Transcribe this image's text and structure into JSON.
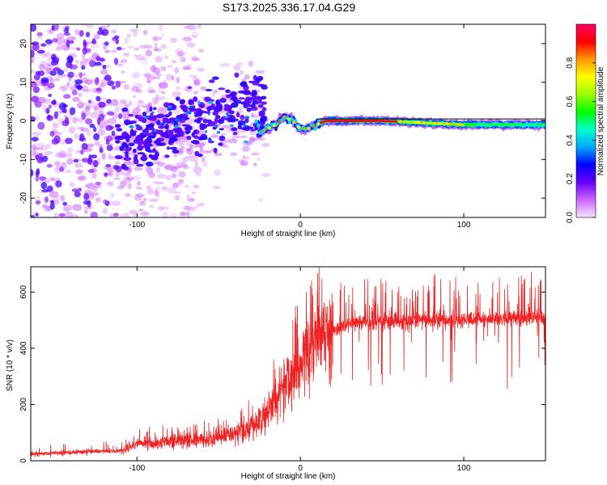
{
  "title": "S173.2025.336.17.04.G29",
  "chart_data": [
    {
      "type": "heatmap",
      "xlabel": "Height of straight line (km)",
      "ylabel": "Frequency (Hz)",
      "xlim": [
        -165,
        150
      ],
      "ylim": [
        -25,
        25
      ],
      "xticks": [
        -100,
        0,
        100
      ],
      "xtick_labels": [
        "-100",
        "0",
        "100"
      ],
      "yticks": [
        -20,
        -10,
        0,
        10,
        20
      ],
      "ytick_labels": [
        "-20",
        "-10",
        "0",
        "10",
        "20"
      ],
      "colorbar": {
        "label": "Normalized spectral amplitude",
        "range": [
          0,
          1
        ],
        "ticks": [
          0.0,
          0.2,
          0.4,
          0.6,
          0.8
        ],
        "tick_labels": [
          "0.0",
          "0.2",
          "0.4",
          "0.6",
          "0.8"
        ],
        "colors": [
          "#f4e6fb",
          "#cc66ff",
          "#6600ff",
          "#0000ff",
          "#00aaff",
          "#00ffcc",
          "#00ff00",
          "#99ff00",
          "#ffff00",
          "#ff9900",
          "#ff0000",
          "#ff0066"
        ]
      },
      "signal_track": {
        "x": [
          -25,
          -20,
          -15,
          -10,
          -5,
          0,
          5,
          10,
          15,
          50,
          100,
          145
        ],
        "y": [
          -3,
          -2,
          -1,
          1,
          0,
          -2,
          -2,
          -1,
          0,
          0,
          -1,
          -1
        ]
      },
      "line_segment": {
        "x": [
          10,
          150
        ],
        "y": [
          0.5,
          0.5
        ]
      }
    },
    {
      "type": "line",
      "xlabel": "Height of straight line (km)",
      "ylabel": "SNR (10 * v/v)",
      "xlim": [
        -165,
        150
      ],
      "ylim": [
        0,
        690
      ],
      "xticks": [
        -100,
        0,
        100
      ],
      "xtick_labels": [
        "-100",
        "0",
        "100"
      ],
      "yticks": [
        0,
        200,
        400,
        600
      ],
      "ytick_labels": [
        "0",
        "200",
        "400",
        "600"
      ],
      "color": "#ee2222",
      "envelope": {
        "x": [
          -165,
          -110,
          -100,
          -50,
          -30,
          -20,
          -10,
          0,
          10,
          20,
          30,
          50,
          100,
          150
        ],
        "y": [
          25,
          35,
          60,
          80,
          120,
          170,
          260,
          340,
          420,
          460,
          490,
          495,
          500,
          510
        ]
      }
    }
  ]
}
